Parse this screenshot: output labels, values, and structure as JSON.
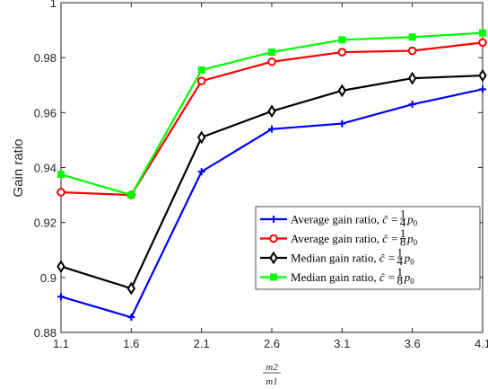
{
  "chart_data": {
    "type": "line",
    "title": "",
    "xlabel_num": "m2",
    "xlabel_den": "m1",
    "ylabel": "Gain ratio",
    "x": [
      1.1,
      1.6,
      2.1,
      2.6,
      3.1,
      3.6,
      4.1
    ],
    "x_tick_labels": [
      "1.1",
      "1.6",
      "2.1",
      "2.6",
      "3.1",
      "3.6",
      "4.1"
    ],
    "y_tick_labels": [
      "0.88",
      "0.9",
      "0.92",
      "0.94",
      "0.96",
      "0.98",
      "1"
    ],
    "xlim": [
      1.1,
      4.1
    ],
    "ylim": [
      0.88,
      1.0
    ],
    "grid": false,
    "legend_position": "lower-right",
    "series": [
      {
        "name": "Average gain ratio, ĉ = 1/4 p0",
        "name_prefix": "Average gain ratio, ",
        "fraction": "4",
        "color": "#0000ff",
        "marker": "plus",
        "values": [
          0.893,
          0.8855,
          0.9385,
          0.954,
          0.956,
          0.963,
          0.9685
        ]
      },
      {
        "name": "Average gain ratio, ĉ = 1/8 p0",
        "name_prefix": "Average gain ratio, ",
        "fraction": "8",
        "color": "#ff0000",
        "marker": "circle",
        "values": [
          0.931,
          0.93,
          0.9715,
          0.9785,
          0.982,
          0.9825,
          0.9855
        ]
      },
      {
        "name": "Median gain ratio, ĉ = 1/4 p0",
        "name_prefix": "Median gain ratio, ",
        "fraction": "4",
        "color": "#000000",
        "marker": "diamond",
        "values": [
          0.904,
          0.896,
          0.951,
          0.9605,
          0.968,
          0.9725,
          0.9735
        ]
      },
      {
        "name": "Median gain ratio, ĉ = 1/8 p0",
        "name_prefix": "Median gain ratio, ",
        "fraction": "8",
        "color": "#00ff00",
        "marker": "square",
        "values": [
          0.9375,
          0.93,
          0.9755,
          0.982,
          0.9865,
          0.9875,
          0.989
        ]
      }
    ]
  }
}
